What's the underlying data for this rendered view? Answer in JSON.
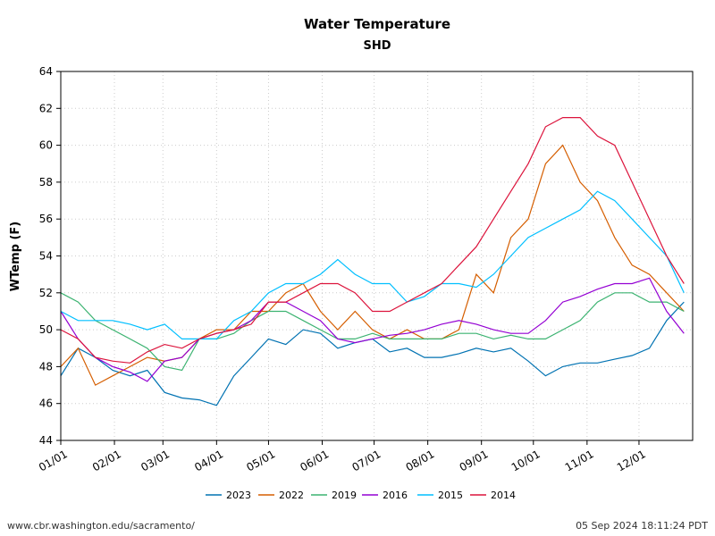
{
  "chart_data": {
    "type": "line",
    "title": "Water Temperature",
    "subtitle": "SHD",
    "xlabel": "",
    "ylabel": "WTemp (F)",
    "ylim": [
      44,
      64
    ],
    "yticks": [
      44,
      46,
      48,
      50,
      52,
      54,
      56,
      58,
      60,
      62,
      64
    ],
    "xlim_day_of_year": [
      0,
      365
    ],
    "xticks": [
      {
        "label": "01/01",
        "day": 0
      },
      {
        "label": "02/01",
        "day": 31
      },
      {
        "label": "03/01",
        "day": 59
      },
      {
        "label": "04/01",
        "day": 90
      },
      {
        "label": "05/01",
        "day": 120
      },
      {
        "label": "06/01",
        "day": 151
      },
      {
        "label": "07/01",
        "day": 181
      },
      {
        "label": "08/01",
        "day": 212
      },
      {
        "label": "09/01",
        "day": 243
      },
      {
        "label": "10/01",
        "day": 273
      },
      {
        "label": "11/01",
        "day": 304
      },
      {
        "label": "12/01",
        "day": 334
      }
    ],
    "grid": true,
    "legend_position": "bottom",
    "x_day_of_year": [
      0,
      10,
      20,
      30,
      40,
      50,
      60,
      70,
      80,
      90,
      100,
      110,
      120,
      130,
      140,
      150,
      160,
      170,
      180,
      190,
      200,
      210,
      220,
      230,
      240,
      250,
      260,
      270,
      280,
      290,
      300,
      310,
      320,
      330,
      340,
      350,
      360
    ],
    "series": [
      {
        "name": "2023",
        "color": "#0072B2",
        "values": [
          47.5,
          49,
          48.5,
          47.8,
          47.5,
          47.8,
          46.6,
          46.3,
          46.2,
          45.9,
          47.5,
          48.5,
          49.5,
          49.2,
          50,
          49.8,
          49,
          49.3,
          49.5,
          48.8,
          49,
          48.5,
          48.5,
          48.7,
          49,
          48.8,
          49,
          48.3,
          47.5,
          48,
          48.2,
          48.2,
          48.4,
          48.6,
          49,
          50.5,
          51.5
        ]
      },
      {
        "name": "2022",
        "color": "#D55E00",
        "values": [
          48,
          49,
          47,
          47.5,
          48,
          48.5,
          48.3,
          48.5,
          49.5,
          50,
          50,
          51,
          51,
          52,
          52.5,
          51,
          50,
          51,
          50,
          49.5,
          50,
          49.5,
          49.5,
          50,
          53,
          52,
          55,
          56,
          59,
          60,
          58,
          57,
          55,
          53.5,
          53,
          52,
          51
        ]
      },
      {
        "name": "2019",
        "color": "#3CB371",
        "values": [
          52,
          51.5,
          50.5,
          50,
          49.5,
          49,
          48,
          47.8,
          49.5,
          49.5,
          49.8,
          50.5,
          51,
          51,
          50.5,
          50,
          49.5,
          49.5,
          49.8,
          49.5,
          49.5,
          49.5,
          49.5,
          49.8,
          49.8,
          49.5,
          49.7,
          49.5,
          49.5,
          50,
          50.5,
          51.5,
          52,
          52,
          51.5,
          51.5,
          51
        ]
      },
      {
        "name": "2016",
        "color": "#9400D3",
        "values": [
          51,
          49.5,
          48.5,
          48,
          47.7,
          47.2,
          48.3,
          48.5,
          49.5,
          49.8,
          50,
          50.5,
          51.5,
          51.5,
          51,
          50.5,
          49.5,
          49.3,
          49.5,
          49.7,
          49.8,
          50,
          50.3,
          50.5,
          50.3,
          50,
          49.8,
          49.8,
          50.5,
          51.5,
          51.8,
          52.2,
          52.5,
          52.5,
          52.8,
          51,
          49.8
        ]
      },
      {
        "name": "2015",
        "color": "#00BFFF",
        "values": [
          51,
          50.5,
          50.5,
          50.5,
          50.3,
          50,
          50.3,
          49.5,
          49.5,
          49.5,
          50.5,
          51,
          52,
          52.5,
          52.5,
          53,
          53.8,
          53,
          52.5,
          52.5,
          51.5,
          51.8,
          52.5,
          52.5,
          52.3,
          53,
          54,
          55,
          55.5,
          56,
          56.5,
          57.5,
          57,
          56,
          55,
          54,
          52
        ]
      },
      {
        "name": "2014",
        "color": "#DC143C",
        "values": [
          50,
          49.5,
          48.5,
          48.3,
          48.2,
          48.8,
          49.2,
          49,
          49.5,
          49.8,
          50,
          50.3,
          51.5,
          51.5,
          52,
          52.5,
          52.5,
          52,
          51,
          51,
          51.5,
          52,
          52.5,
          53.5,
          54.5,
          56,
          57.5,
          59,
          61,
          61.5,
          61.5,
          60.5,
          60,
          58,
          56,
          54,
          52.5
        ]
      }
    ]
  },
  "footer": {
    "url": "www.cbr.washington.edu/sacramento/",
    "timestamp": "05 Sep 2024 18:11:24 PDT"
  }
}
